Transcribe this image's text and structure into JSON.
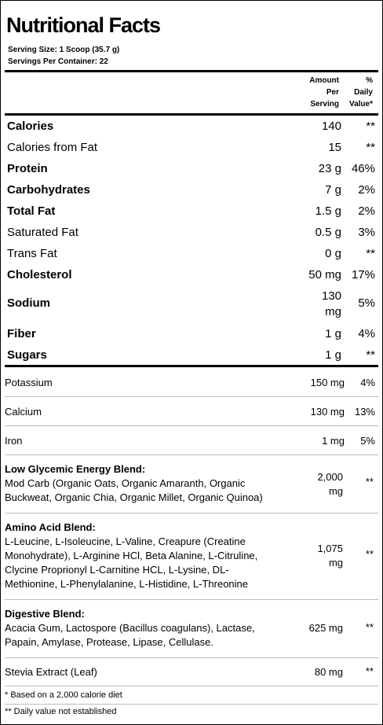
{
  "title": "Nutritional Facts",
  "serving_size": "Serving Size:  1 Scoop (35.7 g)",
  "servings_per_container": "Servings Per Container:  22",
  "header": {
    "amount_l1": "Amount",
    "amount_l2": "Per",
    "amount_l3": "Serving",
    "dv_l1": "%",
    "dv_l2": "Daily",
    "dv_l3": "Value*"
  },
  "main_rows": [
    {
      "label": "Calories",
      "amount": "140",
      "dv": "**"
    },
    {
      "label": "Calories from Fat",
      "amount": "15",
      "dv": "**"
    },
    {
      "label": "Protein",
      "amount": "23 g",
      "dv": "46%"
    },
    {
      "label": "Carbohydrates",
      "amount": "7 g",
      "dv": "2%"
    },
    {
      "label": "Total Fat",
      "amount": "1.5 g",
      "dv": "2%"
    },
    {
      "label": "Saturated Fat",
      "amount": "0.5 g",
      "dv": "3%"
    },
    {
      "label": "Trans Fat",
      "amount": "0 g",
      "dv": "**"
    },
    {
      "label": "Cholesterol",
      "amount": "50 mg",
      "dv": "17%"
    },
    {
      "label": "Sodium",
      "amount_l1": "130",
      "amount_l2": "mg",
      "dv": "5%"
    },
    {
      "label": "Fiber",
      "amount": "1 g",
      "dv": "4%"
    },
    {
      "label": "Sugars",
      "amount": "1 g",
      "dv": "**"
    }
  ],
  "minerals": [
    {
      "label": "Potassium",
      "amount": "150 mg",
      "dv": "4%"
    },
    {
      "label": "Calcium",
      "amount": "130 mg",
      "dv": "13%"
    },
    {
      "label": "Iron",
      "amount": "1 mg",
      "dv": "5%"
    }
  ],
  "blends": [
    {
      "title": "Low Glycemic Energy Blend:",
      "lines": [
        "Mod Carb (Organic Oats, Organic Amaranth, Organic",
        "Buckweat, Organic Chia, Organic Millet, Organic Quinoa)"
      ],
      "amount_l1": "2,000",
      "amount_l2": "mg",
      "dv": "**"
    },
    {
      "title": "Amino Acid Blend:",
      "lines": [
        "L-Leucine, L-Isoleucine, L-Valine, Creapure (Creatine",
        "Monohydrate), L-Arginine HCl, Beta Alanine, L-Citruline,",
        "Clycine Proprionyl L-Carnitine HCL, L-Lysine, DL-",
        "Methionine, L-Phenylalanine, L-Histidine, L-Threonine"
      ],
      "amount_l1": "1,075",
      "amount_l2": "mg",
      "dv": "**"
    },
    {
      "title": "Digestive Blend:",
      "lines": [
        "Acacia Gum, Lactospore (Bacillus coagulans), Lactase,",
        "Papain, Amylase, Protease, Lipase, Cellulase."
      ],
      "amount_l1": "625 mg",
      "dv": "**"
    }
  ],
  "stevia": {
    "label": "Stevia Extract (Leaf)",
    "amount": "80 mg",
    "dv": "**"
  },
  "footnotes": [
    "* Based on a 2,000 calorie diet",
    "** Daily value not established"
  ]
}
